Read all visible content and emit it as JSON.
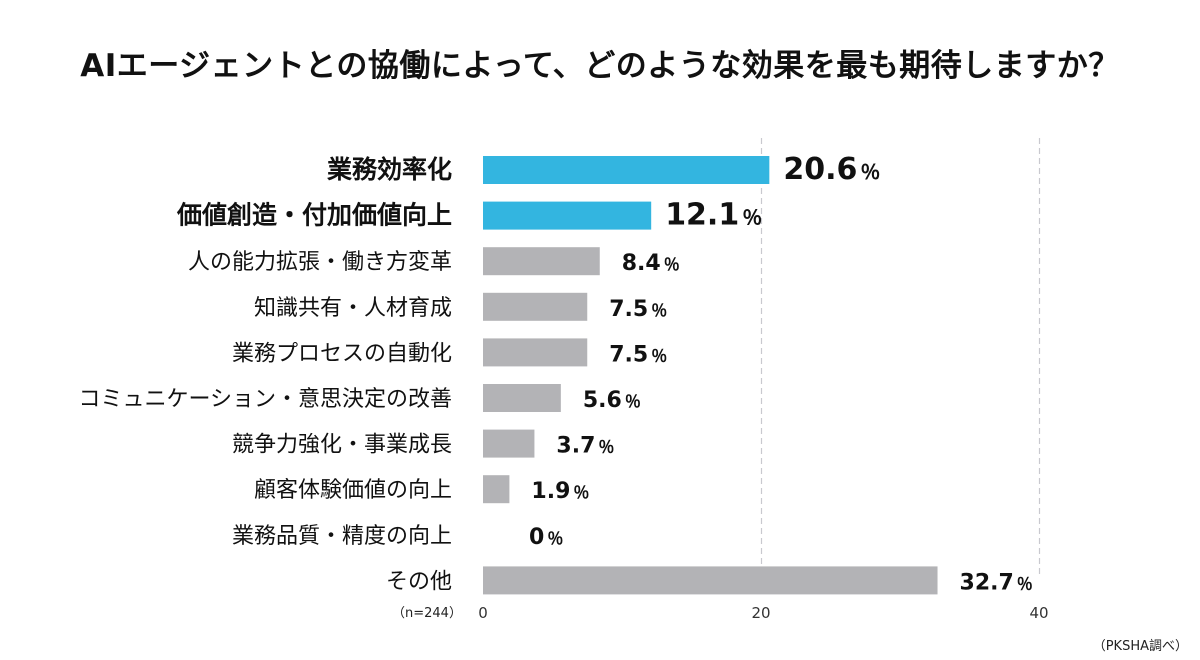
{
  "chart_data": {
    "type": "bar",
    "orientation": "horizontal",
    "title": "AIエージェントとの協働によって、どのような効果を最も期待しますか？",
    "categories": [
      "業務効率化",
      "価値創造・付加価値向上",
      "人の能力拡張・働き方変革",
      "知識共有・人材育成",
      "業務プロセスの自動化",
      "コミュニケーション・意思決定の改善",
      "競争力強化・事業成長",
      "顧客体験価値の向上",
      "業務品質・精度の向上",
      "その他"
    ],
    "values": [
      20.6,
      12.1,
      8.4,
      7.5,
      7.5,
      5.6,
      3.7,
      1.9,
      0,
      32.7
    ],
    "value_labels": [
      "20.6",
      "12.1",
      "8.4",
      "7.5",
      "7.5",
      "5.6",
      "3.7",
      "1.9",
      "0",
      "32.7"
    ],
    "unit": "％",
    "highlight": [
      true,
      true,
      false,
      false,
      false,
      false,
      false,
      false,
      false,
      false
    ],
    "xlim": [
      0,
      40
    ],
    "xticks": [
      0,
      20,
      40
    ],
    "xtick_labels": [
      "0",
      "20",
      "40"
    ],
    "grid": "dashed vertical lines at 20 and 40",
    "colors": {
      "highlight": "#33b5e0",
      "normal": "#b3b3b6",
      "grid": "#c9c9cf"
    }
  },
  "sample_note": "（n=244）",
  "source": "（PKSHA調べ）"
}
